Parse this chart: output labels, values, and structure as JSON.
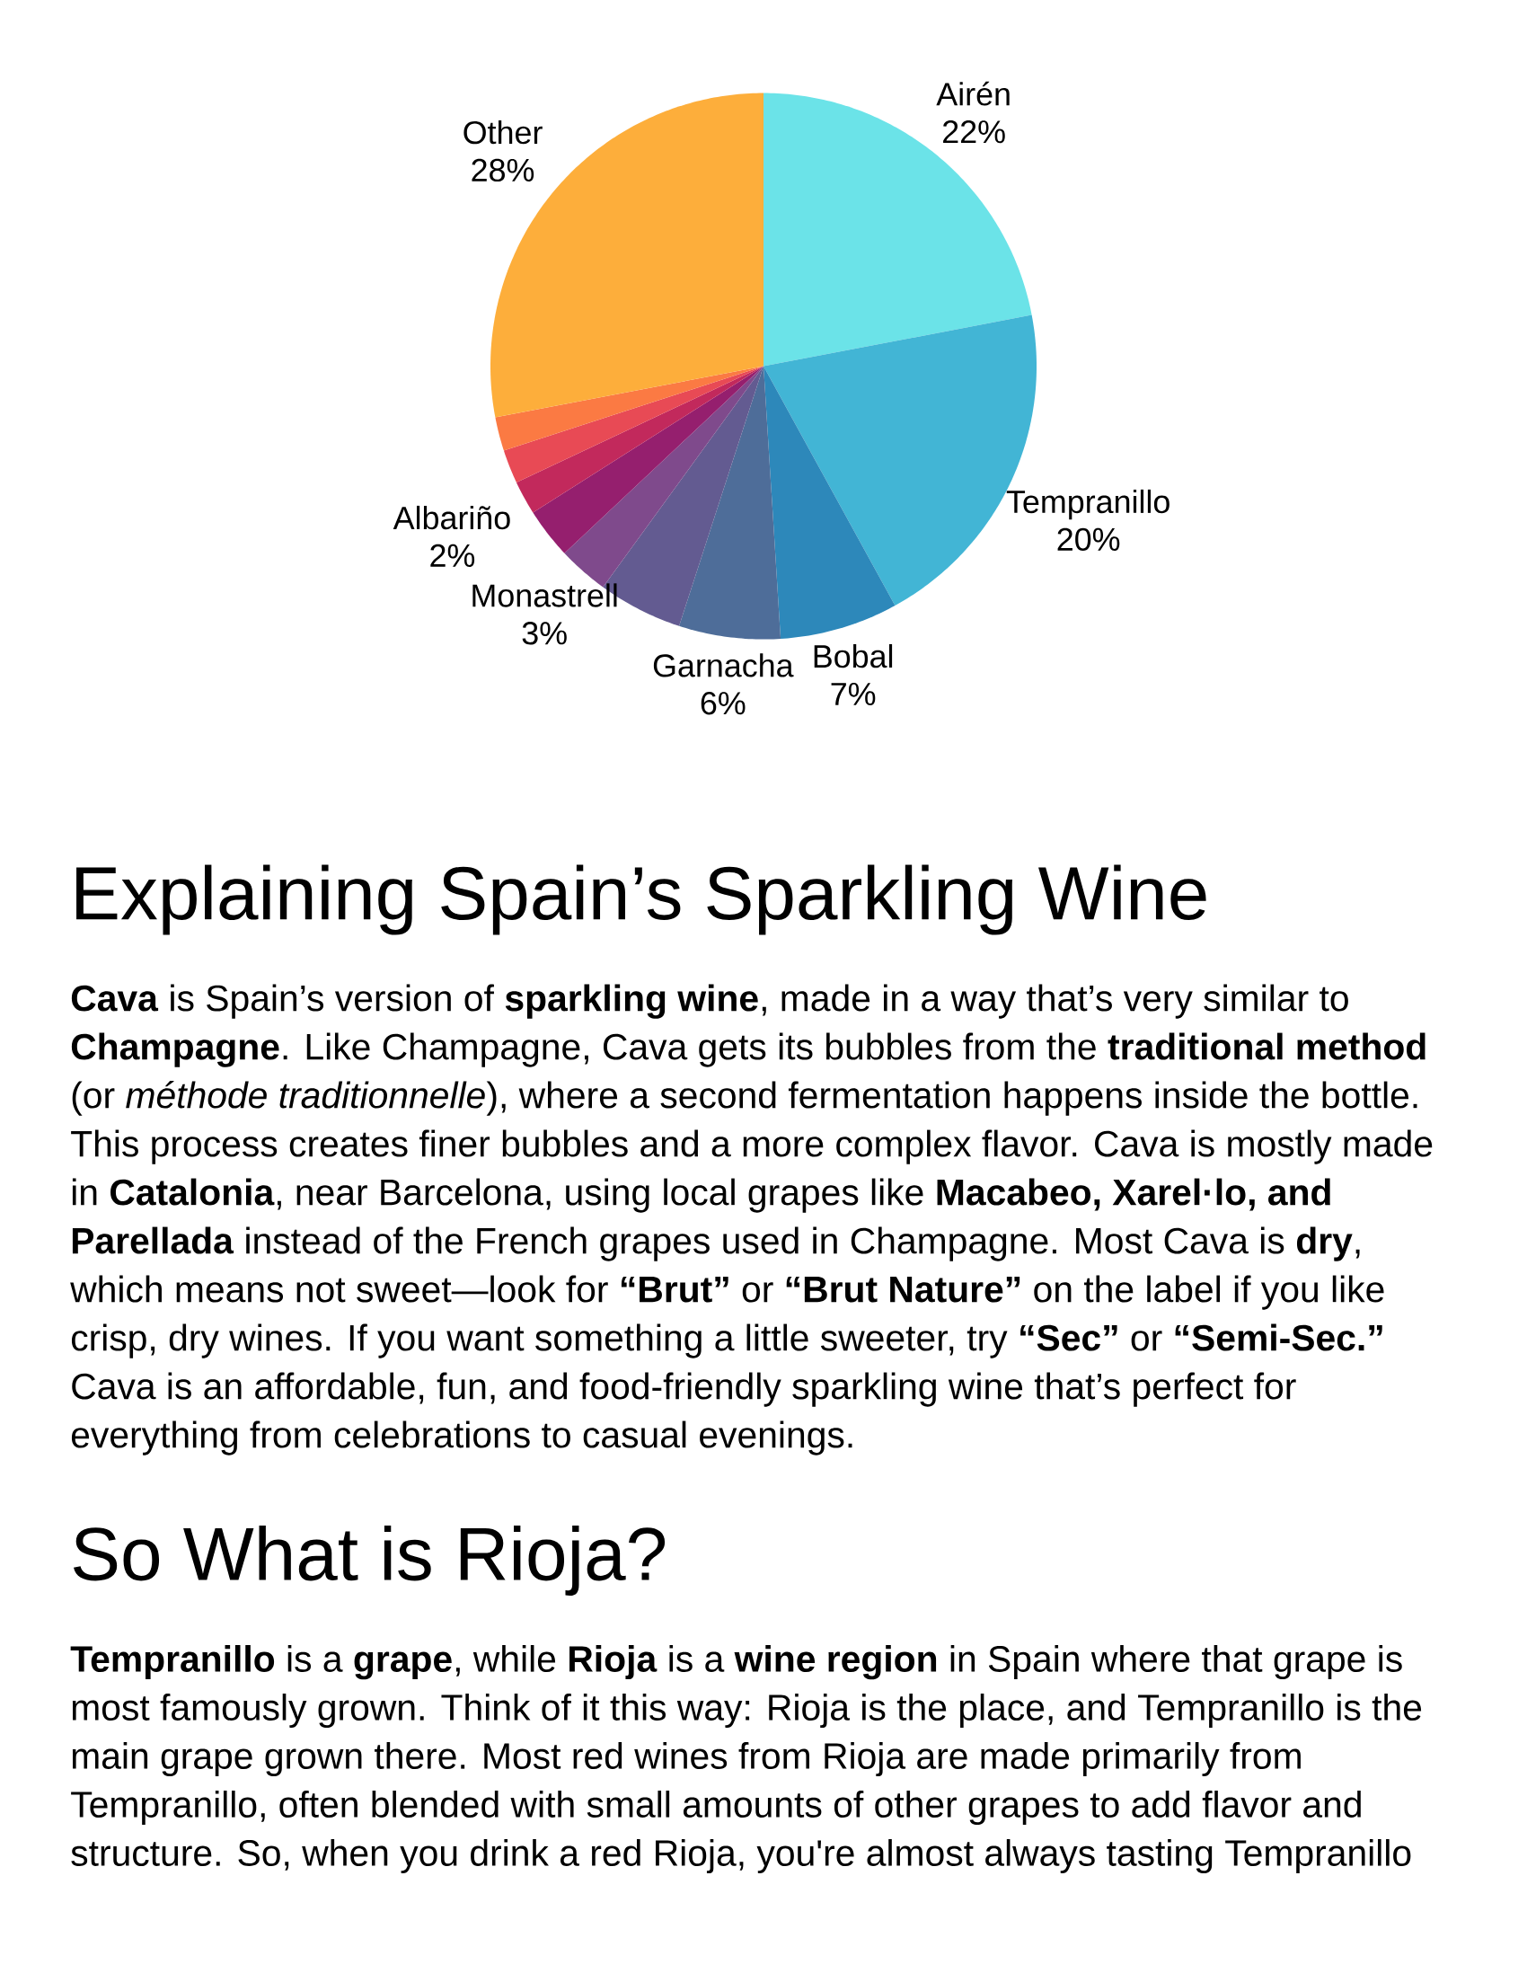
{
  "chart_data": {
    "type": "pie",
    "categories": [
      "Airén",
      "Tempranillo",
      "Bobal",
      "Garnacha",
      null,
      "Monastrell",
      null,
      "Albariño",
      null,
      null,
      "Other"
    ],
    "values": [
      22,
      20,
      7,
      6,
      5,
      3,
      3,
      2,
      2,
      2,
      28
    ],
    "colors": [
      "#6be3e8",
      "#42b5d5",
      "#2d88ba",
      "#4e6d99",
      "#635b91",
      "#7f4a8c",
      "#951f6e",
      "#c2295c",
      "#e84a55",
      "#fb7a43",
      "#fdae3b"
    ],
    "value_labels": [
      "22%",
      "20%",
      "7%",
      "6%",
      null,
      "3%",
      null,
      "2%",
      null,
      null,
      "28%"
    ],
    "annotations": [
      "Explaining Spain’s Sparkling Wine",
      "**Cava** is Spain’s version of **sparkling wine**, made in a way that’s very similar to **Champagne**. Like Champagne, Cava gets its bubbles from the **traditional method** (or *méthode traditionnelle*), where a second fermentation happens inside the bottle. This process creates finer bubbles and a more complex flavor. Cava is mostly made in **Catalonia**, near Barcelona, using local grapes like **Macabeo, Xarel·lo, and Parellada** instead of the French grapes used in Champagne. Most Cava is **dry**, which means not sweet—look for **“Brut”** or **“Brut Nature”** on the label if you like crisp, dry wines. If you want something a little sweeter, try **“Sec”** or **“Semi-Sec.”** Cava is an affordable, fun, and food-friendly sparkling wine that’s perfect for everything from celebrations to casual evenings.",
      "So What is Rioja?",
      "**Tempranillo** is a **grape**, while **Rioja** is a **wine region** in Spain where that grape is most famously grown. Think of it this way: Rioja is the place, and Tempranillo is the main grape grown there. Most red wines from Rioja are made primarily from Tempranillo, often blended with small amounts of other grapes to add flavor and structure. So, when you drink a red Rioja, you're almost always tasting Tempranillo"
    ]
  }
}
